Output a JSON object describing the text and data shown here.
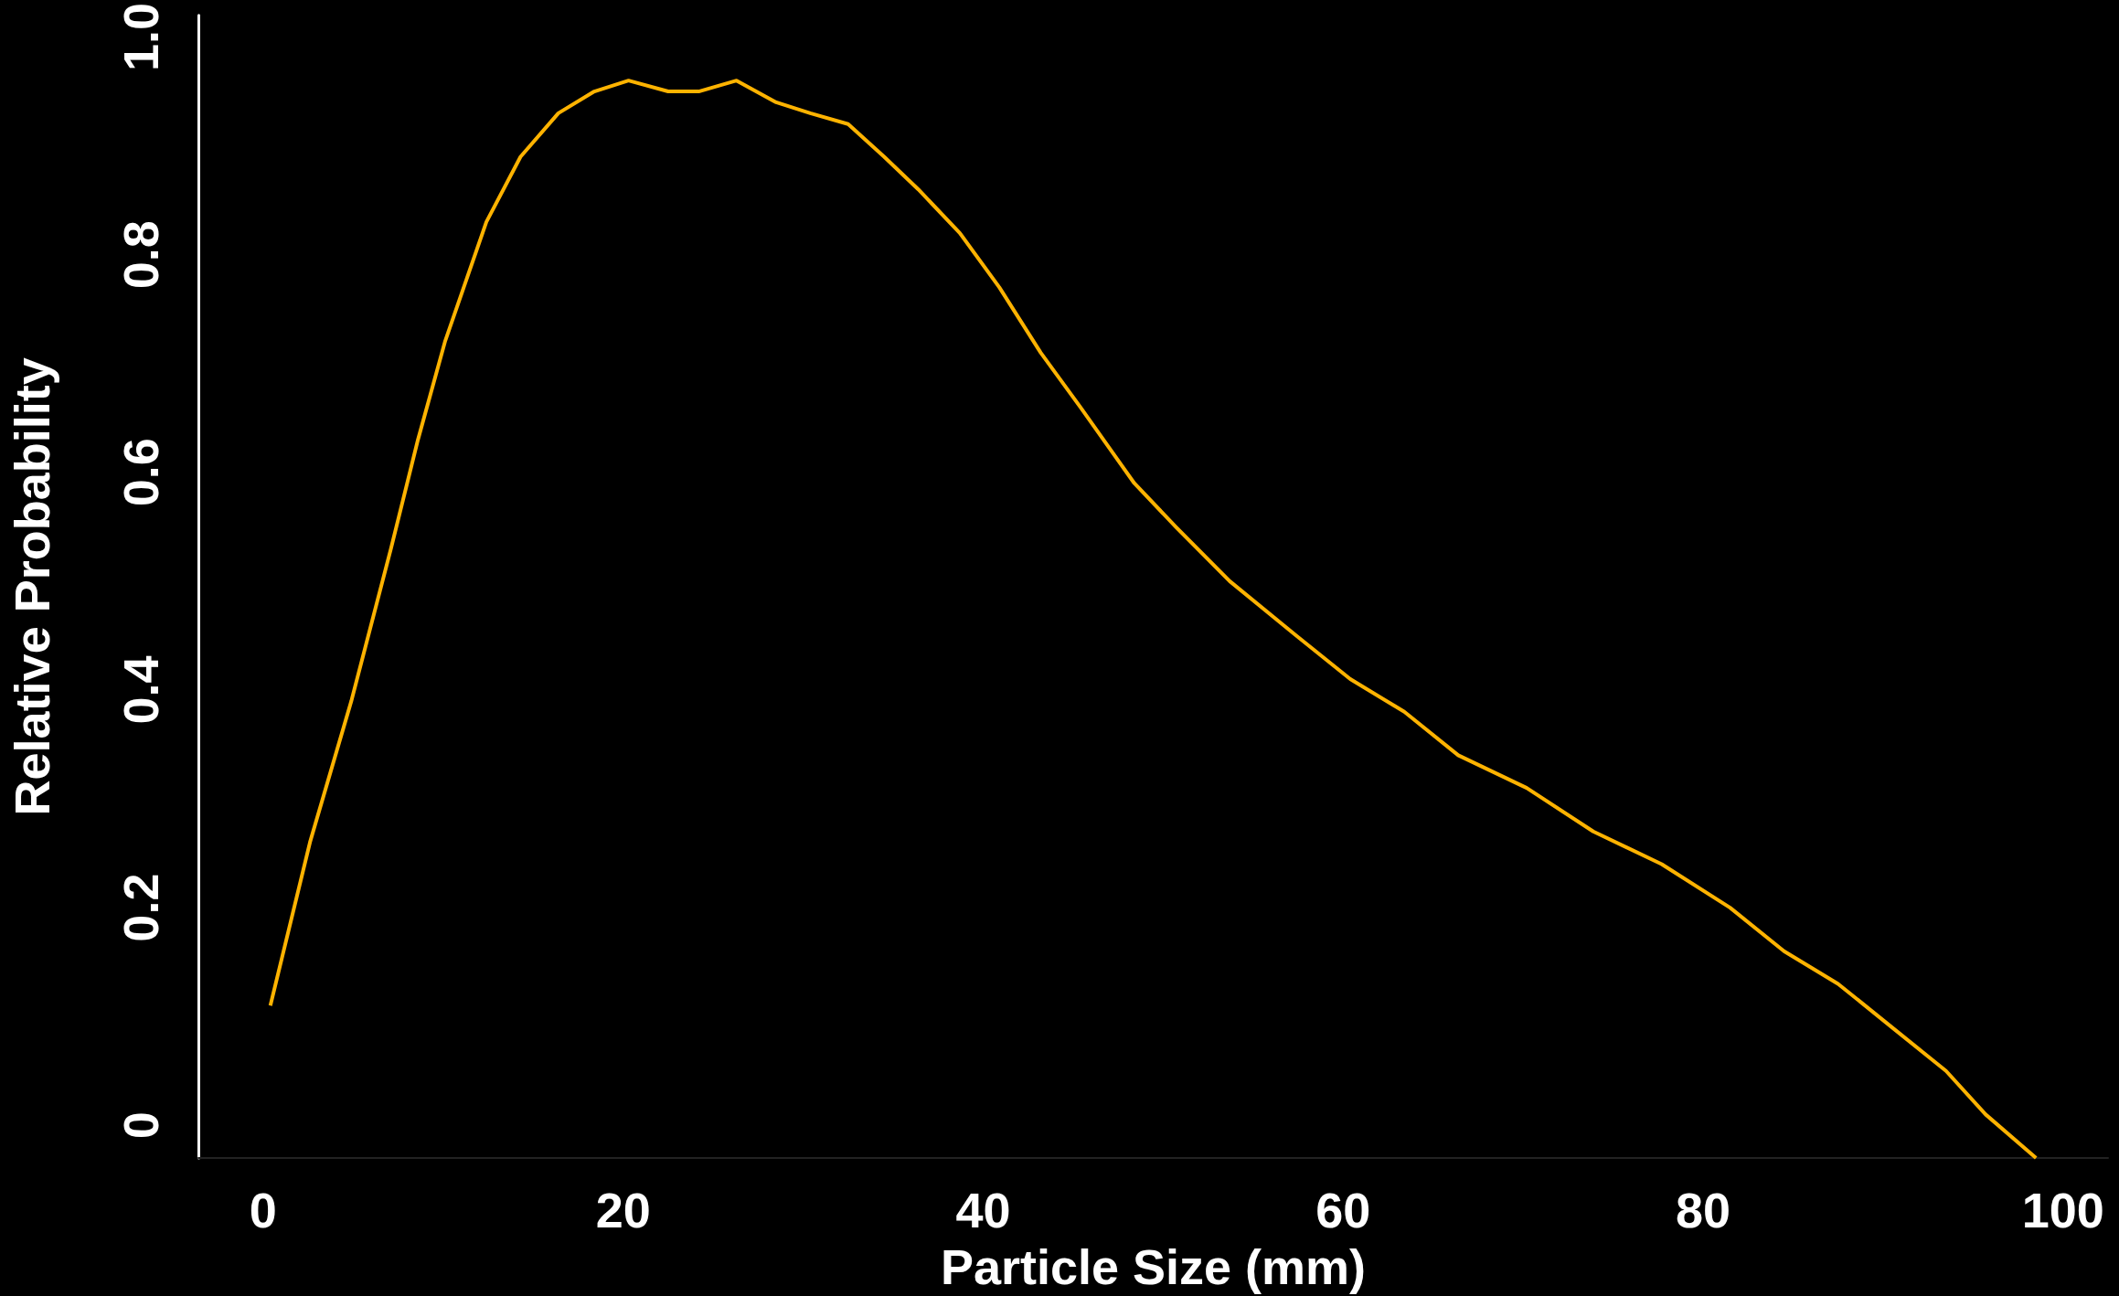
{
  "chart_data": {
    "type": "line",
    "xlabel": "Particle Size (mm)",
    "ylabel": "Relative Probability",
    "x": [
      0.4,
      2.6,
      4.9,
      7.1,
      8.6,
      10.1,
      12.4,
      14.3,
      16.4,
      18.4,
      20.3,
      22.5,
      24.2,
      26.3,
      28.5,
      30.4,
      32.5,
      34.5,
      36.4,
      38.7,
      40.9,
      43.2,
      45.4,
      48.4,
      50.7,
      53.7,
      57.4,
      60.4,
      63.4,
      66.4,
      70.2,
      73.9,
      77.7,
      81.5,
      84.5,
      87.5,
      90.5,
      93.5,
      95.7,
      98.5
    ],
    "series": [
      {
        "color": "#ffb300",
        "values": [
          0.11,
          0.26,
          0.39,
          0.53,
          0.63,
          0.72,
          0.83,
          0.89,
          0.93,
          0.95,
          0.96,
          0.95,
          0.95,
          0.96,
          0.94,
          0.93,
          0.92,
          0.89,
          0.86,
          0.82,
          0.77,
          0.71,
          0.66,
          0.59,
          0.55,
          0.5,
          0.45,
          0.41,
          0.38,
          0.34,
          0.31,
          0.27,
          0.24,
          0.2,
          0.16,
          0.13,
          0.09,
          0.05,
          0.01,
          -0.03
        ]
      }
    ],
    "xlim": [
      -3.6,
      102.5
    ],
    "ylim": [
      -0.03,
      1.02
    ],
    "xticks": [
      0,
      20,
      40,
      60,
      80,
      100
    ],
    "yticks": [
      0,
      0.2,
      0.4,
      0.6,
      0.8,
      {
        "value": 1,
        "label": "1.0"
      }
    ],
    "grid": false,
    "marker": "none",
    "line_style": "solid"
  }
}
